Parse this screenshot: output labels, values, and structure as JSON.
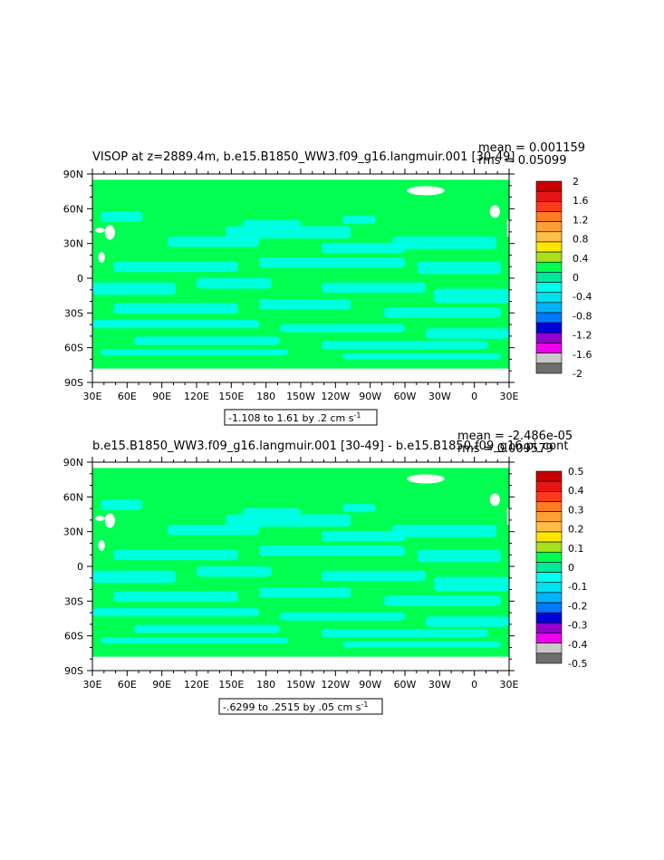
{
  "panels": [
    {
      "title": "VISOP at z=2889.4m, b.e15.B1850_WW3.f09_g16.langmuir.001 [30-49]",
      "mean_text": "mean = 0.001159",
      "rms_text": "rms = 0.05099",
      "range_text": "-1.108 to 1.61 by .2 cm s",
      "range_unit_exp": "-1",
      "x_ticks": [
        "30E",
        "60E",
        "90E",
        "120E",
        "150E",
        "180",
        "150W",
        "120W",
        "90W",
        "60W",
        "30W",
        "0",
        "30E"
      ],
      "y_ticks": [
        "90N",
        "60N",
        "30N",
        "0",
        "30S",
        "60S",
        "90S"
      ],
      "colorbar_labels": [
        "2",
        "1.6",
        "1.2",
        "0.8",
        "0.4",
        "0",
        "-0.4",
        "-0.8",
        "-1.2",
        "-1.6",
        "-2"
      ],
      "colorbar_colors": [
        "#c80000",
        "#e81414",
        "#ff3a1c",
        "#ff7a22",
        "#ff9e34",
        "#ffbe48",
        "#ffe600",
        "#a8e01c",
        "#00ff50",
        "#00e89c",
        "#00ffee",
        "#00e0f0",
        "#00b4ff",
        "#0078ff",
        "#0000dc",
        "#9400d0",
        "#ee00ee",
        "#c8c8c8",
        "#6e6e6e"
      ]
    },
    {
      "title": "b.e15.B1850_WW3.f09_g16.langmuir.001 [30-49] - b.e15.B1850.f09_g16.pi_cont",
      "mean_text": "mean = -2.486e-05",
      "rms_text": "rms = 0.009579",
      "range_text": "-.6299 to .2515 by .05 cm s",
      "range_unit_exp": "-1",
      "x_ticks": [
        "30E",
        "60E",
        "90E",
        "120E",
        "150E",
        "180",
        "150W",
        "120W",
        "90W",
        "60W",
        "30W",
        "0",
        "30E"
      ],
      "y_ticks": [
        "90N",
        "60N",
        "30N",
        "0",
        "30S",
        "60S",
        "90S"
      ],
      "colorbar_labels": [
        "0.5",
        "0.4",
        "0.3",
        "0.2",
        "0.1",
        "0",
        "-0.1",
        "-0.2",
        "-0.3",
        "-0.4",
        "-0.5"
      ],
      "colorbar_colors": [
        "#c80000",
        "#e81414",
        "#ff3a1c",
        "#ff7a22",
        "#ff9e34",
        "#ffbe48",
        "#ffe600",
        "#a8e01c",
        "#00ff50",
        "#00e89c",
        "#00ffee",
        "#00e0f0",
        "#00b4ff",
        "#0078ff",
        "#0000dc",
        "#9400d0",
        "#ee00ee",
        "#c8c8c8",
        "#6e6e6e"
      ]
    }
  ],
  "colors": {
    "background_field": "#00ff50",
    "negative_patch": "#00ffee",
    "land_gap": "#ffffff"
  }
}
